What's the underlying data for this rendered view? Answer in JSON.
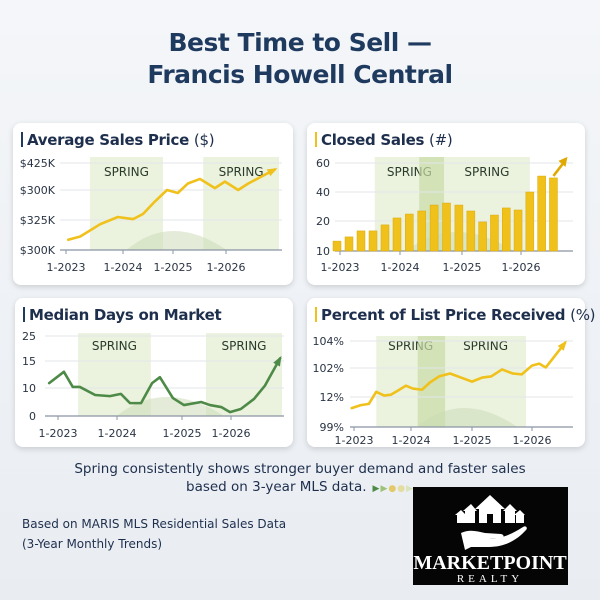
{
  "header": {
    "title_line1": "Best Time to Sell —",
    "title_line2": "Francis Howell Central"
  },
  "colors": {
    "navy": "#1f3a5f",
    "gold": "#f0c11a",
    "green": "#4e8a47",
    "spring_band": "#e4eed3",
    "spring_band_dark": "#c9dca6"
  },
  "chart_data": [
    {
      "id": "avg-price",
      "type": "line",
      "title": "Average Sales Price",
      "title_unit": "($)",
      "accent": "#1f3a5f",
      "line_color": "#f0c11a",
      "xticks": [
        {
          "label": "1-2023",
          "value": 2023
        },
        {
          "label": "1-2024",
          "value": 2024
        },
        {
          "label": "1-2025",
          "value": 2025
        },
        {
          "label": "1-2026",
          "value": 2026
        }
      ],
      "yticks": [
        {
          "label": "$300K",
          "value": 0
        },
        {
          "label": "$325K",
          "value": 1
        },
        {
          "label": "$300K",
          "value": 2
        },
        {
          "label": "$425K",
          "value": 3
        }
      ],
      "y_units": "tick position (printed tick labels are non-monotonic)",
      "spring_bands": [
        {
          "label": "SPRING",
          "from": 2023.42,
          "to": 2024.8
        },
        {
          "label": "SPRING",
          "from": 2025.57,
          "to": 2027.0
        }
      ],
      "dark_bands": [],
      "x": [
        2023.04,
        2023.25,
        2023.6,
        2023.91,
        2024.2,
        2024.4,
        2024.64,
        2024.88,
        2025.09,
        2025.28,
        2025.51,
        2025.79,
        2025.98,
        2026.23,
        2026.42,
        2026.92
      ],
      "values": [
        0.34,
        0.45,
        0.86,
        1.1,
        1.03,
        1.2,
        1.62,
        2.0,
        1.9,
        2.24,
        2.41,
        2.07,
        2.31,
        2.0,
        2.24,
        2.76
      ],
      "trend_arrow": true,
      "grid": true
    },
    {
      "id": "closed-sales",
      "type": "bar",
      "title": "Closed Sales",
      "title_unit": "(#)",
      "accent": "#f0c11a",
      "bar_color": "#f0c11a",
      "xticks": [
        {
          "label": "1-2023",
          "value": 2023
        },
        {
          "label": "1-2024",
          "value": 2024
        },
        {
          "label": "1-2025",
          "value": 2025
        },
        {
          "label": "1-2026",
          "value": 2026
        }
      ],
      "yticks": [
        {
          "label": "10",
          "value": 10
        },
        {
          "label": "20",
          "value": 20
        },
        {
          "label": "40",
          "value": 40
        },
        {
          "label": "60",
          "value": 60
        }
      ],
      "spring_bands": [
        {
          "label": "SPRING",
          "from": 2023.58,
          "to": 2024.71
        },
        {
          "label": "SPRING",
          "from": 2024.71,
          "to": 2026.15
        }
      ],
      "dark_bands": [
        {
          "from": 2024.31,
          "to": 2024.71
        }
      ],
      "x": [
        2022.95,
        2023.15,
        2023.35,
        2023.55,
        2023.75,
        2023.95,
        2024.15,
        2024.35,
        2024.55,
        2024.75,
        2024.95,
        2025.15,
        2025.35,
        2025.55,
        2025.75,
        2025.95,
        2026.15,
        2026.35,
        2026.55
      ],
      "values": [
        13.3,
        14.7,
        16.7,
        16.7,
        18.7,
        22.1,
        24.8,
        26.9,
        31,
        32.4,
        31,
        26.9,
        19.7,
        24.1,
        29,
        27.6,
        40,
        51,
        49.7
      ],
      "trend_arrow": true,
      "grid": true
    },
    {
      "id": "days-on-market",
      "type": "line",
      "title": "Median Days on Market",
      "title_unit": "",
      "accent": "#1f3a5f",
      "line_color": "#4e8a47",
      "xticks": [
        {
          "label": "1-2023",
          "value": 2023
        },
        {
          "label": "1-2024",
          "value": 2024
        },
        {
          "label": "1-2025",
          "value": 2025
        },
        {
          "label": "1-2026",
          "value": 2026
        }
      ],
      "yticks": [
        {
          "label": "0",
          "value": 0
        },
        {
          "label": "10",
          "value": 10
        },
        {
          "label": "15",
          "value": 15
        },
        {
          "label": "25",
          "value": 25
        }
      ],
      "spring_bands": [
        {
          "label": "SPRING",
          "from": 2023.34,
          "to": 2024.52
        },
        {
          "label": "SPRING",
          "from": 2025.49,
          "to": 2027.04
        }
      ],
      "dark_bands": [],
      "x": [
        2022.85,
        2023.1,
        2023.25,
        2023.37,
        2023.63,
        2023.88,
        2024.06,
        2024.2,
        2024.37,
        2024.54,
        2024.66,
        2024.86,
        2025.04,
        2025.39,
        2025.57,
        2025.8,
        2025.98,
        2026.2,
        2026.47,
        2026.69,
        2027.0
      ],
      "values": [
        10.9,
        13,
        10.2,
        10.2,
        7.5,
        7.1,
        7.9,
        4.6,
        4.6,
        10.9,
        12,
        6.4,
        3.9,
        5,
        3.9,
        3.2,
        1.4,
        2.5,
        6.1,
        10.4,
        16
      ],
      "trend_arrow": true,
      "grid": true
    },
    {
      "id": "pct-list-price",
      "type": "line",
      "title": "Percent of List Price Received",
      "title_unit": "(%)",
      "accent": "#f0c11a",
      "line_color": "#f0c11a",
      "xticks": [
        {
          "label": "1-2023",
          "value": 2023
        },
        {
          "label": "1-2024",
          "value": 2024
        },
        {
          "label": "1-2025",
          "value": 2025
        },
        {
          "label": "1-2026",
          "value": 2026
        }
      ],
      "yticks": [
        {
          "label": "99%",
          "value": 0
        },
        {
          "label": "12%",
          "value": 1
        },
        {
          "label": "102%",
          "value": 2
        },
        {
          "label": "104%",
          "value": 3
        }
      ],
      "y_units": "tick position (printed tick labels are non-monotonic)",
      "spring_bands": [
        {
          "label": "SPRING",
          "from": 2023.39,
          "to": 2024.56
        },
        {
          "label": "SPRING",
          "from": 2024.56,
          "to": 2025.9
        }
      ],
      "dark_bands": [
        {
          "from": 2024.11,
          "to": 2024.56
        }
      ],
      "x": [
        2022.96,
        2023.12,
        2023.26,
        2023.39,
        2023.53,
        2023.65,
        2023.77,
        2023.91,
        2024.03,
        2024.18,
        2024.31,
        2024.46,
        2024.64,
        2024.82,
        2025.0,
        2025.17,
        2025.32,
        2025.5,
        2025.68,
        2025.83,
        2026.0,
        2026.12,
        2026.23,
        2026.55
      ],
      "values": [
        0.63,
        0.73,
        0.77,
        1.18,
        1.05,
        1.08,
        1.22,
        1.39,
        1.29,
        1.25,
        1.5,
        1.71,
        1.81,
        1.67,
        1.53,
        1.67,
        1.71,
        1.95,
        1.81,
        1.78,
        2.09,
        2.16,
        2.02,
        2.93
      ],
      "trend_arrow": true,
      "grid": true
    }
  ],
  "caption": {
    "line1": "Spring consistently shows stronger buyer demand and faster sales",
    "line2": "based on 3-year MLS data."
  },
  "footer": {
    "source_line1": "Based on MARIS MLS Residential Sales Data",
    "source_line2": "(3-Year Monthly Trends)"
  },
  "logo": {
    "name": "MarketPoint",
    "sub": "REALTY",
    "icon": "hand-holding-houses-icon"
  }
}
